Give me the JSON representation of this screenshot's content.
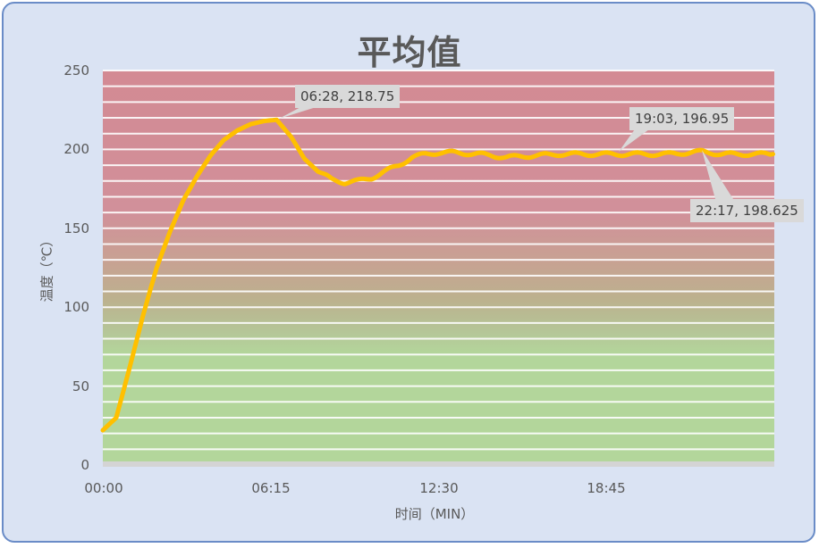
{
  "chart": {
    "title": "平均值",
    "ylabel": "温度（℃）",
    "xlabel": "时间（MIN）",
    "yticks": [
      "250",
      "200",
      "150",
      "100",
      "50",
      "0"
    ],
    "xticks": [
      "00:00",
      "06:15",
      "12:30",
      "18:45"
    ],
    "callouts": [
      {
        "text": "06:28, 218.75"
      },
      {
        "text": "19:03, 196.95"
      },
      {
        "text": "22:17, 198.625"
      }
    ],
    "colors": {
      "line": "#ffc000",
      "band_high": "#d38a93",
      "band_low": "#b3d69b",
      "background": "#dae3f3",
      "frame_border": "#6a8cc7",
      "callout_bg": "#d9d9d9"
    }
  },
  "chart_data": {
    "type": "line",
    "title": "平均值",
    "xlabel": "时间（MIN）",
    "ylabel": "温度（℃）",
    "ylim": [
      0,
      250
    ],
    "yticks": [
      0,
      50,
      100,
      150,
      200,
      250
    ],
    "xticks": [
      "00:00",
      "06:15",
      "12:30",
      "18:45"
    ],
    "grid": "horizontal lines every 10 units",
    "background": "vertical gradient: green (0-90) to red (150-250)",
    "series": [
      {
        "name": "平均值",
        "color": "#ffc000",
        "x": [
          "00:00",
          "00:30",
          "01:00",
          "01:30",
          "02:00",
          "02:30",
          "03:00",
          "03:30",
          "04:00",
          "04:30",
          "05:00",
          "05:30",
          "06:00",
          "06:28",
          "07:00",
          "07:30",
          "08:00",
          "08:30",
          "09:00",
          "09:30",
          "10:00",
          "10:30",
          "11:00",
          "11:30",
          "12:00",
          "12:30",
          "13:00",
          "14:00",
          "15:00",
          "16:00",
          "17:00",
          "18:00",
          "19:03",
          "20:00",
          "21:00",
          "22:17",
          "23:00",
          "24:00",
          "24:55"
        ],
        "values": [
          22,
          30,
          62,
          95,
          125,
          148,
          168,
          183,
          196,
          206,
          212,
          216,
          218,
          218.75,
          208,
          194,
          186,
          181,
          179,
          180,
          182,
          186,
          190,
          195,
          197,
          198,
          198,
          197,
          195,
          196,
          197,
          197,
          196.95,
          197,
          197,
          198.625,
          197,
          197,
          197
        ]
      }
    ],
    "annotations": [
      {
        "x": "06:28",
        "y": 218.75,
        "label": "06:28, 218.75"
      },
      {
        "x": "19:03",
        "y": 196.95,
        "label": "19:03, 196.95"
      },
      {
        "x": "22:17",
        "y": 198.625,
        "label": "22:17, 198.625"
      }
    ]
  }
}
